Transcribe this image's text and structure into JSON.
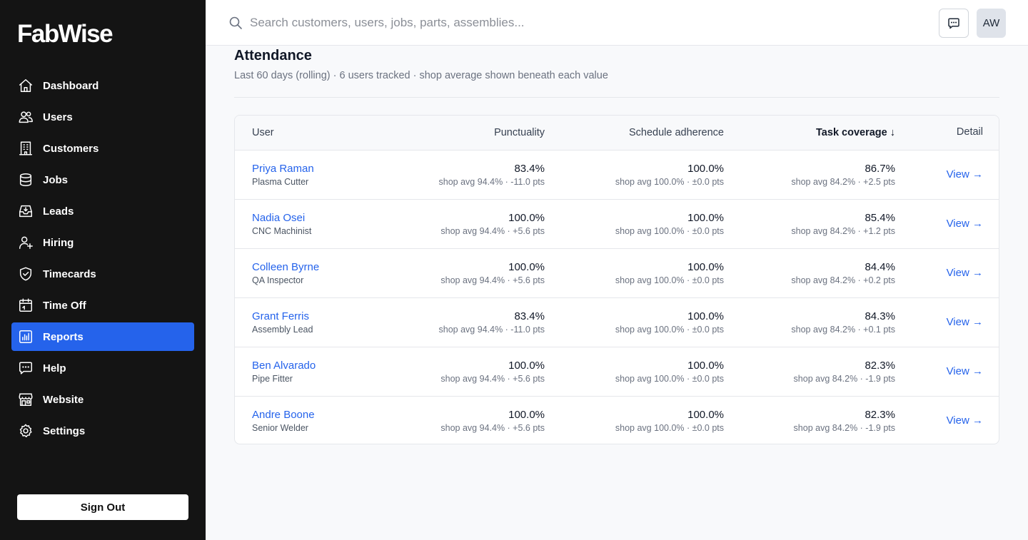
{
  "brand": {
    "name": "FabWise"
  },
  "sidebar": {
    "items": [
      {
        "label": "Dashboard",
        "icon": "home-icon",
        "active": false
      },
      {
        "label": "Users",
        "icon": "users-icon",
        "active": false
      },
      {
        "label": "Customers",
        "icon": "building-icon",
        "active": false
      },
      {
        "label": "Jobs",
        "icon": "database-icon",
        "active": false
      },
      {
        "label": "Leads",
        "icon": "inbox-icon",
        "active": false
      },
      {
        "label": "Hiring",
        "icon": "user-plus-icon",
        "active": false
      },
      {
        "label": "Timecards",
        "icon": "shield-check-icon",
        "active": false
      },
      {
        "label": "Time Off",
        "icon": "calendar-icon",
        "active": false
      },
      {
        "label": "Reports",
        "icon": "bar-chart-icon",
        "active": true
      },
      {
        "label": "Help",
        "icon": "chat-bubble-icon",
        "active": false
      },
      {
        "label": "Website",
        "icon": "storefront-icon",
        "active": false
      },
      {
        "label": "Settings",
        "icon": "gear-icon",
        "active": false
      }
    ],
    "sign_out_label": "Sign Out",
    "active_color": "#2563eb",
    "background": "#141414"
  },
  "header": {
    "search_placeholder": "Search customers, users, jobs, parts, assemblies...",
    "search_value": "",
    "avatar_initials": "AW"
  },
  "report": {
    "title": "Attendance",
    "subtitle": "Last 60 days (rolling) · 6 users tracked · shop average shown beneath each value",
    "columns": {
      "user": "User",
      "punctuality": "Punctuality",
      "schedule": "Schedule adherence",
      "task": "Task coverage ↓",
      "detail": "Detail"
    },
    "rows": [
      {
        "name": "Priya Raman",
        "role": "Plasma Cutter",
        "punctuality": "83.4%",
        "punctuality_avg": "shop avg 94.4% · -11.0 pts",
        "schedule": "100.0%",
        "schedule_avg": "shop avg 100.0% · ±0.0 pts",
        "task": "86.7%",
        "task_avg": "shop avg 84.2% · +2.5 pts",
        "view": "View →"
      },
      {
        "name": "Nadia Osei",
        "role": "CNC Machinist",
        "punctuality": "100.0%",
        "punctuality_avg": "shop avg 94.4% · +5.6 pts",
        "schedule": "100.0%",
        "schedule_avg": "shop avg 100.0% · ±0.0 pts",
        "task": "85.4%",
        "task_avg": "shop avg 84.2% · +1.2 pts",
        "view": "View →"
      },
      {
        "name": "Colleen Byrne",
        "role": "QA Inspector",
        "punctuality": "100.0%",
        "punctuality_avg": "shop avg 94.4% · +5.6 pts",
        "schedule": "100.0%",
        "schedule_avg": "shop avg 100.0% · ±0.0 pts",
        "task": "84.4%",
        "task_avg": "shop avg 84.2% · +0.2 pts",
        "view": "View →"
      },
      {
        "name": "Grant Ferris",
        "role": "Assembly Lead",
        "punctuality": "83.4%",
        "punctuality_avg": "shop avg 94.4% · -11.0 pts",
        "schedule": "100.0%",
        "schedule_avg": "shop avg 100.0% · ±0.0 pts",
        "task": "84.3%",
        "task_avg": "shop avg 84.2% · +0.1 pts",
        "view": "View →"
      },
      {
        "name": "Ben Alvarado",
        "role": "Pipe Fitter",
        "punctuality": "100.0%",
        "punctuality_avg": "shop avg 94.4% · +5.6 pts",
        "schedule": "100.0%",
        "schedule_avg": "shop avg 100.0% · ±0.0 pts",
        "task": "82.3%",
        "task_avg": "shop avg 84.2% · -1.9 pts",
        "view": "View →"
      },
      {
        "name": "Andre Boone",
        "role": "Senior Welder",
        "punctuality": "100.0%",
        "punctuality_avg": "shop avg 94.4% · +5.6 pts",
        "schedule": "100.0%",
        "schedule_avg": "shop avg 100.0% · ±0.0 pts",
        "task": "82.3%",
        "task_avg": "shop avg 84.2% · -1.9 pts",
        "view": "View →"
      }
    ]
  }
}
